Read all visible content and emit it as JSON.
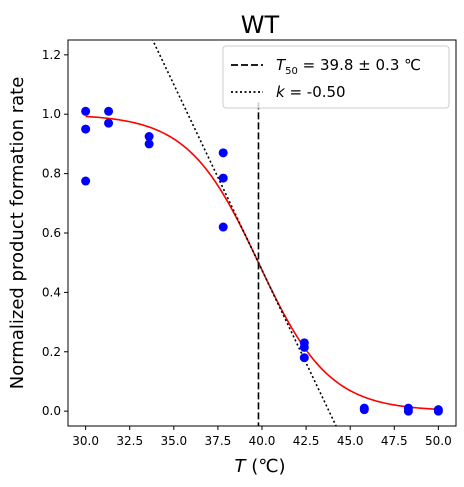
{
  "chart_data": {
    "type": "scatter",
    "title": "WT",
    "xlabel_var": "T",
    "xlabel_unit": " (℃)",
    "ylabel": "Normalized product formation rate",
    "xlim": [
      29.0,
      51.0
    ],
    "ylim": [
      -0.05,
      1.25
    ],
    "xticks": [
      "30.0",
      "32.5",
      "35.0",
      "37.5",
      "40.0",
      "42.5",
      "45.0",
      "47.5",
      "50.0"
    ],
    "yticks": [
      "0.0",
      "0.2",
      "0.4",
      "0.6",
      "0.8",
      "1.0",
      "1.2"
    ],
    "grid": false,
    "legend_position": "top-right",
    "points": {
      "x": [
        30.0,
        30.0,
        30.0,
        31.3,
        31.3,
        33.6,
        33.6,
        37.8,
        37.8,
        37.8,
        42.4,
        42.4,
        42.4,
        45.8,
        45.8,
        48.3,
        48.3,
        50.0,
        50.0
      ],
      "y": [
        1.01,
        0.95,
        0.775,
        1.01,
        0.97,
        0.925,
        0.9,
        0.87,
        0.785,
        0.62,
        0.23,
        0.215,
        0.18,
        0.01,
        0.005,
        0.01,
        0.0,
        0.005,
        0.0
      ],
      "color": "#0000ff"
    },
    "fit_curve": {
      "model": "sigmoid",
      "top": 1.0,
      "bottom": 0.0,
      "midpoint": 39.8,
      "slope_scale": 2.0,
      "color": "#ff0000"
    },
    "t50_line": {
      "x": 39.8,
      "y_top": 1.04,
      "color": "#000000",
      "style": "dashed",
      "legend_var": "T",
      "legend_sub": "50",
      "legend_rest": " = 39.8 ± 0.3 ℃"
    },
    "tangent_line": {
      "x0": 39.8,
      "y0": 0.5,
      "slope": -0.125,
      "color": "#000000",
      "style": "dotted",
      "legend_var": "k",
      "legend_rest": " = -0.50"
    }
  }
}
